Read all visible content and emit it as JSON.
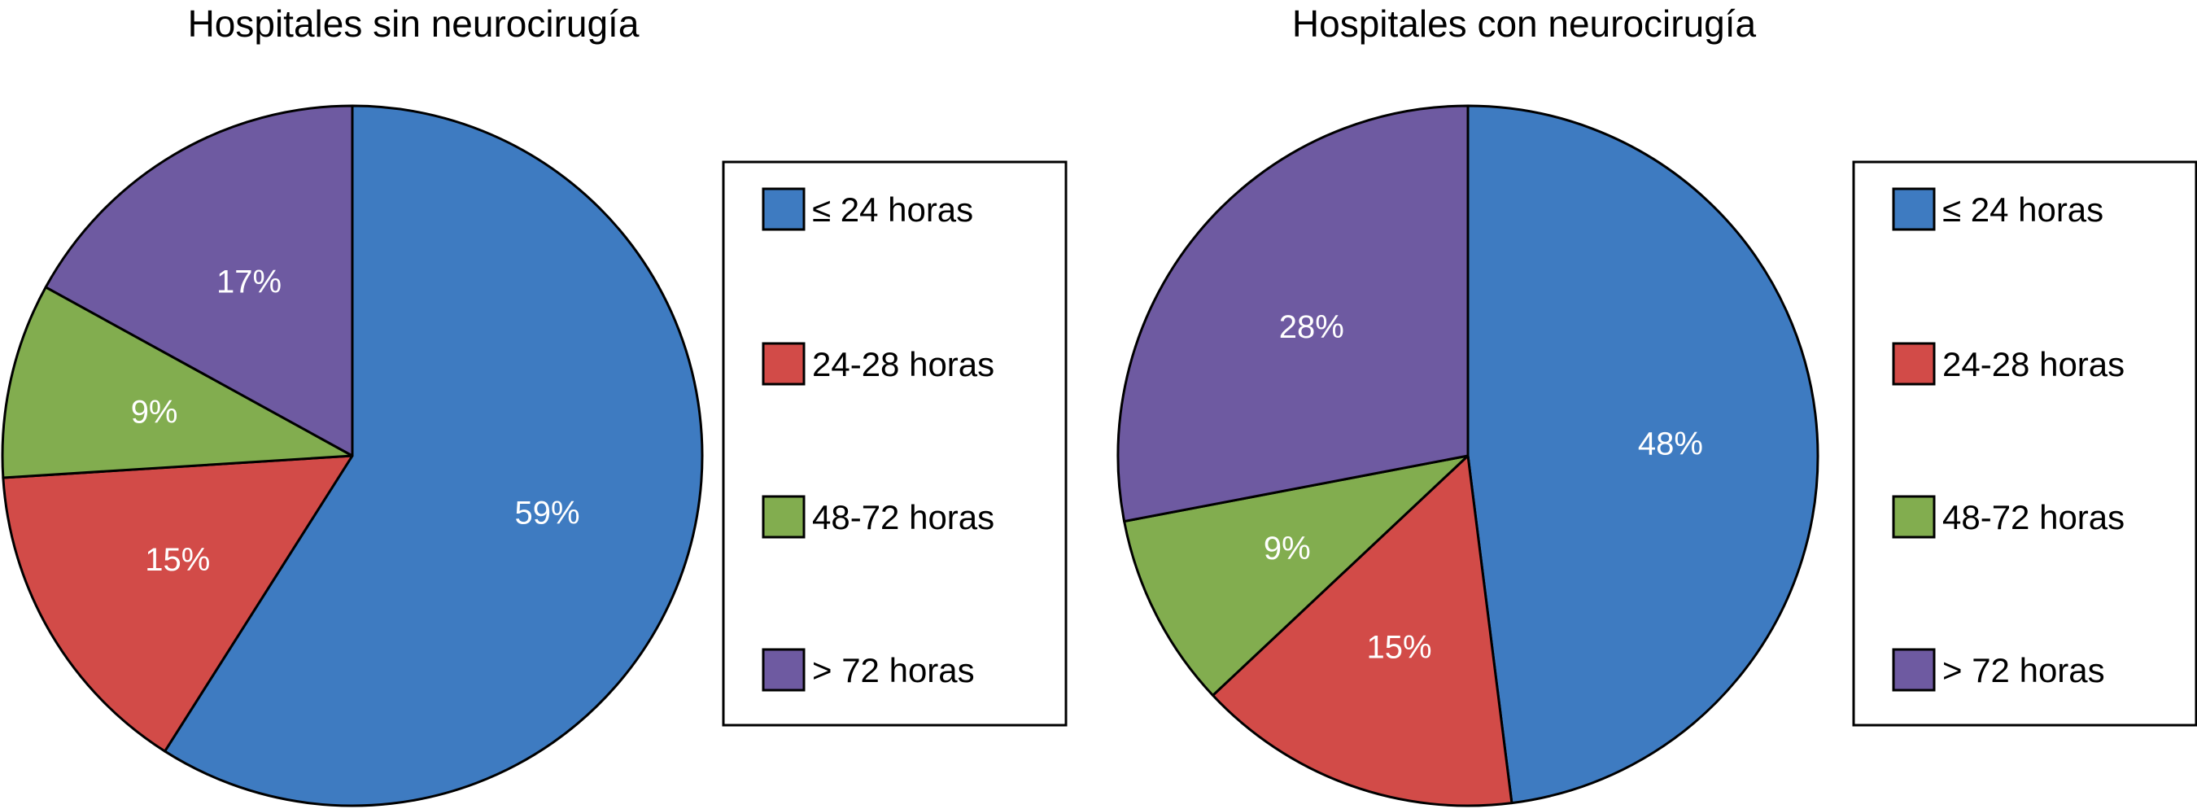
{
  "chart_data": [
    {
      "type": "pie",
      "title": "Hospitales sin neurocirugía",
      "categories": [
        "≤ 24 horas",
        "24-28 horas",
        "48-72 horas",
        "> 72 horas"
      ],
      "values": [
        59,
        15,
        9,
        17
      ],
      "labels": [
        "59%",
        "15%",
        "9%",
        "17%"
      ],
      "colors": [
        "#3e7bc1",
        "#d24b48",
        "#82ad4f",
        "#6e5aa1"
      ],
      "legend_position": "right"
    },
    {
      "type": "pie",
      "title": "Hospitales con neurocirugía",
      "categories": [
        "≤ 24 horas",
        "24-28 horas",
        "48-72 horas",
        "> 72 horas"
      ],
      "values": [
        48,
        15,
        9,
        28
      ],
      "labels": [
        "48%",
        "15%",
        "9%",
        "28%"
      ],
      "colors": [
        "#3e7bc1",
        "#d24b48",
        "#82ad4f",
        "#6e5aa1"
      ],
      "legend_position": "right"
    }
  ]
}
